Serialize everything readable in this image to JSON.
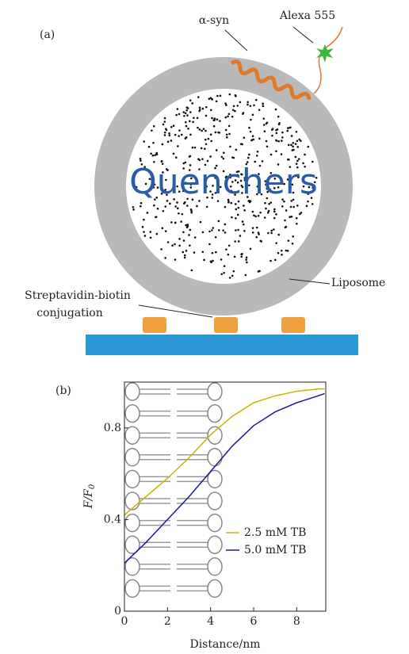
{
  "diagram": {
    "panel_label": "(a)",
    "labels": {
      "protein": "α-syn",
      "dye": "Alexa 555",
      "core": "Quenchers",
      "vesicle": "Liposome",
      "linker_line1": "Streptavidin-biotin",
      "linker_line2": "conjugation"
    }
  },
  "chart_data": {
    "type": "line",
    "panel_label": "(b)",
    "x_label": "Distance/nm",
    "y_label": {
      "main": "F/F",
      "sub": "0"
    },
    "x": [
      0,
      1,
      2,
      3,
      4,
      5,
      6,
      7,
      8,
      9,
      9.3
    ],
    "series": [
      {
        "name": "2.5 mM TB",
        "color": "#c8b400",
        "values": [
          0.42,
          0.5,
          0.58,
          0.67,
          0.77,
          0.85,
          0.91,
          0.94,
          0.96,
          0.97,
          0.97
        ]
      },
      {
        "name": "5.0 mM TB",
        "color": "#1a1a9a",
        "values": [
          0.21,
          0.3,
          0.4,
          0.5,
          0.61,
          0.72,
          0.81,
          0.87,
          0.91,
          0.94,
          0.95
        ]
      }
    ],
    "xlim": [
      0,
      9.35
    ],
    "ylim": [
      0,
      1.0
    ],
    "xticks": [
      0,
      2,
      4,
      6,
      8
    ],
    "yticks": [
      0,
      0.4,
      0.8
    ]
  }
}
